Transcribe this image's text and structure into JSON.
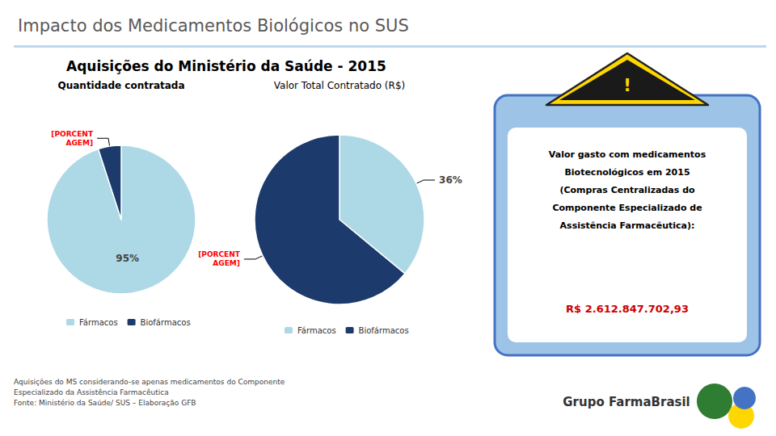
{
  "title": "Impacto dos Medicamentos Biológicos no SUS",
  "subtitle": "Aquisições do Ministério da Saúde - 2015",
  "chart_data": [
    {
      "type": "pie",
      "title": "Quantidade contratada",
      "categories": [
        "Fármacos",
        "Biofármacos"
      ],
      "values": [
        95,
        5
      ],
      "value_labels": [
        "95%",
        "[PORCENT\nAGEM]"
      ],
      "colors": [
        "#ADD8E6",
        "#1C3A6B"
      ],
      "data_labels": true,
      "legend": "bottom"
    },
    {
      "type": "pie",
      "title": "Valor Total Contratado (R$)",
      "categories": [
        "Fármacos",
        "Biofármacos"
      ],
      "values": [
        36,
        64
      ],
      "value_labels": [
        "36%",
        "[PORCENT\nAGEM]"
      ],
      "colors": [
        "#ADD8E6",
        "#1C3A6B"
      ],
      "data_labels": true,
      "legend": "bottom"
    }
  ],
  "annotations": [
    "!",
    "Valor gasto com medicamentos\nBiotecnológicos em 2015\n(Compras Centralizadas do\nComponente Especializado de\nAssistência Farmacêutica):",
    "R$ 2.612.847.702,93",
    "Aquisições do MS considerando-se apenas medicamentos do Componente",
    "Especializado da Assistência Farmacêutica",
    "Fonte: Ministério da Saúde/ SUS – Elaboração GFB",
    "Grupo FarmaBrasil"
  ]
}
